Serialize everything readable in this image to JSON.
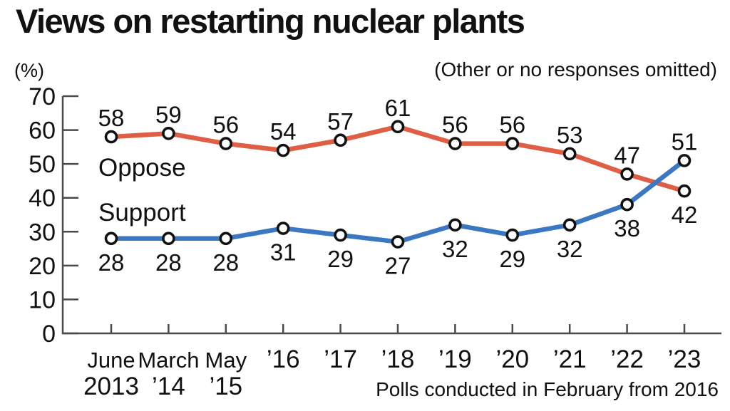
{
  "page": {
    "title": "Views on restarting nuclear plants",
    "unit_label": "(%)",
    "note_top": "(Other or no responses omitted)",
    "note_bottom": "Polls conducted in February from 2016"
  },
  "chart_data": {
    "type": "line",
    "title": "Views on restarting nuclear plants",
    "ylabel": "(%)",
    "xlabel": "",
    "ylim": [
      0,
      70
    ],
    "y_ticks": [
      0,
      10,
      20,
      30,
      40,
      50,
      60,
      70
    ],
    "grid": false,
    "legend_position": "inline-left",
    "x_tick_labels": [
      {
        "lines": [
          "June",
          "2013"
        ]
      },
      {
        "lines": [
          "March",
          "’14"
        ]
      },
      {
        "lines": [
          "May",
          "’15"
        ]
      },
      {
        "lines": [
          "’16"
        ]
      },
      {
        "lines": [
          "’17"
        ]
      },
      {
        "lines": [
          "’18"
        ]
      },
      {
        "lines": [
          "’19"
        ]
      },
      {
        "lines": [
          "’20"
        ]
      },
      {
        "lines": [
          "’21"
        ]
      },
      {
        "lines": [
          "’22"
        ]
      },
      {
        "lines": [
          "’23"
        ]
      }
    ],
    "series": [
      {
        "name": "Oppose",
        "color": "#DE5F45",
        "values": [
          58,
          59,
          56,
          54,
          57,
          61,
          56,
          56,
          53,
          47,
          42
        ],
        "label_positions": [
          "above",
          "above",
          "above",
          "above",
          "above",
          "above",
          "above",
          "above",
          "above",
          "above",
          "below"
        ]
      },
      {
        "name": "Support",
        "color": "#3C77C2",
        "values": [
          28,
          28,
          28,
          31,
          29,
          27,
          32,
          29,
          32,
          38,
          51
        ],
        "label_positions": [
          "below",
          "below",
          "below",
          "below",
          "below",
          "below",
          "below",
          "below",
          "below",
          "below",
          "above"
        ]
      }
    ],
    "marker": {
      "fill": "#FFFFFF",
      "stroke": "#111111"
    },
    "axis_color": "#4a4a4a",
    "text_color": "#111111"
  }
}
